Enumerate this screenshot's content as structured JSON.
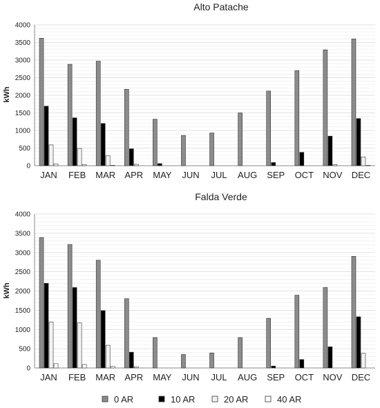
{
  "colors": {
    "0 AR": "#8c8c8c",
    "10 AR": "#000000",
    "20 AR": "#f2f2f2",
    "40 AR": "#ffffff",
    "grid": "#d9d9d9",
    "axis": "#888888",
    "bar_stroke": "#333333"
  },
  "legend": {
    "position": "bottom",
    "items": [
      "0 AR",
      "10 AR",
      "20 AR",
      "40 AR"
    ]
  },
  "chart_data": [
    {
      "type": "bar",
      "title": "Alto Patache",
      "xlabel": "",
      "ylabel": "kWh",
      "ylim": [
        0,
        4000
      ],
      "yticks": [
        0,
        500,
        1000,
        1500,
        2000,
        2500,
        3000,
        3500,
        4000
      ],
      "grid": true,
      "categories": [
        "JAN",
        "FEB",
        "MAR",
        "APR",
        "MAY",
        "JUN",
        "JUL",
        "AUG",
        "SEP",
        "OCT",
        "NOV",
        "DEC"
      ],
      "series": [
        {
          "name": "0 AR",
          "values": [
            3620,
            2880,
            2970,
            2170,
            1320,
            860,
            930,
            1500,
            2120,
            2700,
            3290,
            3600
          ]
        },
        {
          "name": "10 AR",
          "values": [
            1690,
            1360,
            1200,
            480,
            60,
            0,
            0,
            0,
            90,
            380,
            840,
            1340
          ]
        },
        {
          "name": "20 AR",
          "values": [
            590,
            490,
            280,
            40,
            0,
            0,
            0,
            0,
            0,
            0,
            30,
            250
          ]
        },
        {
          "name": "40 AR",
          "values": [
            50,
            30,
            10,
            0,
            0,
            0,
            0,
            0,
            0,
            0,
            0,
            10
          ]
        }
      ]
    },
    {
      "type": "bar",
      "title": "Falda Verde",
      "xlabel": "",
      "ylabel": "kWh",
      "ylim": [
        0,
        4000
      ],
      "yticks": [
        0,
        500,
        1000,
        1500,
        2000,
        2500,
        3000,
        3500,
        4000
      ],
      "grid": true,
      "categories": [
        "JAN",
        "FEB",
        "MAR",
        "APR",
        "MAY",
        "JUN",
        "JUL",
        "AUG",
        "SEP",
        "OCT",
        "NOV",
        "DEC"
      ],
      "series": [
        {
          "name": "0 AR",
          "values": [
            3390,
            3210,
            2800,
            1800,
            790,
            350,
            390,
            790,
            1290,
            1890,
            2090,
            2900
          ]
        },
        {
          "name": "10 AR",
          "values": [
            2200,
            2090,
            1490,
            410,
            0,
            0,
            0,
            0,
            50,
            220,
            550,
            1330
          ]
        },
        {
          "name": "20 AR",
          "values": [
            1190,
            1170,
            590,
            30,
            0,
            0,
            0,
            0,
            0,
            0,
            0,
            380
          ]
        },
        {
          "name": "40 AR",
          "values": [
            110,
            90,
            40,
            0,
            0,
            0,
            0,
            0,
            0,
            0,
            0,
            0
          ]
        }
      ]
    }
  ]
}
